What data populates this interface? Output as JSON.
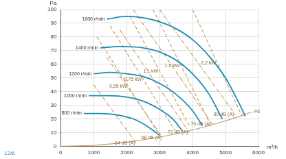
{
  "chart_data": {
    "type": "line",
    "xlabel": "m³/h",
    "ylabel": "Pa",
    "xlim": [
      0,
      6000
    ],
    "ylim": [
      0,
      100
    ],
    "xticks": [
      0,
      1000,
      2000,
      3000,
      4000,
      5000,
      6000
    ],
    "yticks": [
      0,
      10,
      20,
      30,
      40,
      50,
      60,
      70,
      80,
      90,
      100
    ],
    "grid": true,
    "annotations": [
      {
        "text": "12/6"
      }
    ],
    "series": [
      {
        "name": "1600 r/min",
        "color": "#1b8bb4",
        "line_style": "solid",
        "x": [
          1400,
          2000,
          2500,
          3000,
          3500,
          4000,
          4500,
          5000,
          5400,
          5600
        ],
        "values": [
          93,
          95,
          94,
          91,
          86,
          78,
          66,
          50,
          32,
          22
        ]
      },
      {
        "name": "1400 r/min",
        "color": "#1b8bb4",
        "line_style": "solid",
        "x": [
          1200,
          1800,
          2500,
          3000,
          3500,
          4000,
          4500,
          4900
        ],
        "values": [
          72,
          73,
          72,
          69,
          63,
          53,
          38,
          20
        ]
      },
      {
        "name": "1200 r/min",
        "color": "#1b8bb4",
        "line_style": "solid",
        "x": [
          1000,
          1500,
          2000,
          2500,
          3000,
          3500,
          4000,
          4300
        ],
        "values": [
          53,
          54,
          53,
          51,
          46,
          38,
          26,
          15
        ]
      },
      {
        "name": "1000 r/min",
        "color": "#1b8bb4",
        "line_style": "solid",
        "x": [
          850,
          1500,
          2000,
          2500,
          3000,
          3400,
          3700
        ],
        "values": [
          37,
          37,
          36,
          33,
          27,
          20,
          11
        ]
      },
      {
        "name": "800 r/min",
        "color": "#1b8bb4",
        "line_style": "solid",
        "x": [
          700,
          1200,
          1700,
          2200,
          2600,
          3000
        ],
        "values": [
          24,
          24,
          23,
          20,
          15,
          8
        ]
      },
      {
        "name": "Pd",
        "color": "#c79a64",
        "line_style": "solid",
        "x": [
          0,
          1000,
          2000,
          3000,
          4000,
          5000,
          5800
        ],
        "values": [
          0,
          0.7,
          3,
          6.7,
          11.9,
          18.6,
          25
        ]
      },
      {
        "name": "0,55 kW",
        "color": "#c79a64",
        "line_style": "dashed",
        "x": [
          1100,
          3000
        ],
        "values": [
          80,
          8
        ]
      },
      {
        "name": "0,75 kW",
        "color": "#c79a64",
        "line_style": "dashed",
        "x": [
          1500,
          3500
        ],
        "values": [
          88,
          10
        ]
      },
      {
        "name": "1,1 kW",
        "color": "#c79a64",
        "line_style": "dashed",
        "x": [
          2100,
          3900
        ],
        "values": [
          95,
          15
        ]
      },
      {
        "name": "1,5 kW",
        "color": "#c79a64",
        "line_style": "dashed",
        "x": [
          2800,
          4500
        ],
        "values": [
          100,
          18
        ]
      },
      {
        "name": "2,2 kW",
        "color": "#c79a64",
        "line_style": "dashed",
        "x": [
          4000,
          5500
        ],
        "values": [
          100,
          22
        ]
      },
      {
        "name": "64 dB (A)",
        "color": "#c79a64",
        "line_style": "dashdot",
        "x": [
          1000,
          2300
        ],
        "values": [
          45,
          2
        ]
      },
      {
        "name": "68 dB (A)",
        "color": "#c79a64",
        "line_style": "dashdot",
        "x": [
          1400,
          3100
        ],
        "values": [
          65,
          6
        ]
      },
      {
        "name": "72 dB (A)",
        "color": "#c79a64",
        "line_style": "dashdot",
        "x": [
          1800,
          3900
        ],
        "values": [
          85,
          10
        ]
      },
      {
        "name": "76 dB (A)",
        "color": "#c79a64",
        "line_style": "dashdot",
        "x": [
          2200,
          4600
        ],
        "values": [
          100,
          16
        ]
      },
      {
        "name": "80 dB (A)",
        "color": "#c79a64",
        "line_style": "dashdot",
        "x": [
          3000,
          5300
        ],
        "values": [
          100,
          23
        ]
      }
    ]
  }
}
